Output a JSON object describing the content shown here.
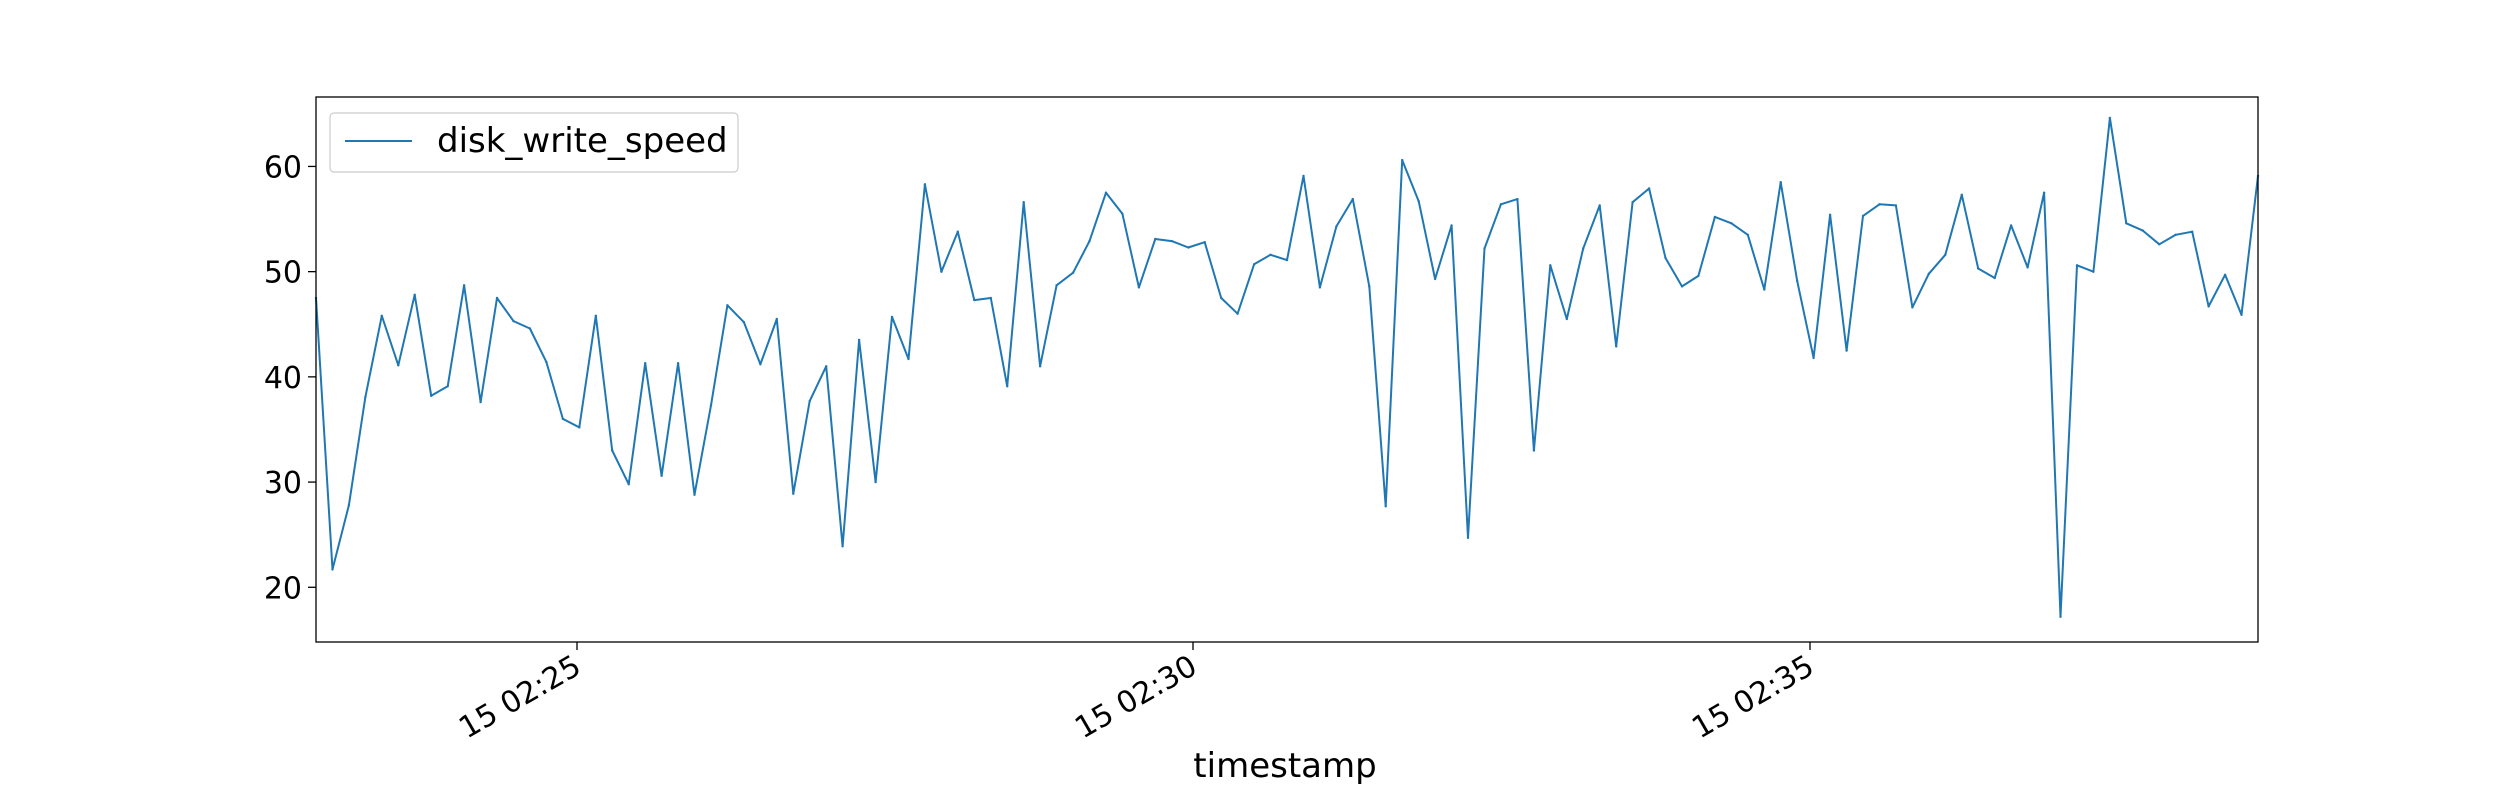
{
  "chart_data": {
    "type": "line",
    "title": "",
    "xlabel": "timestamp",
    "ylabel": "",
    "x_tick_labels": [
      "15 02:25",
      "15 02:30",
      "15 02:35"
    ],
    "y_ticks": [
      20,
      30,
      40,
      50,
      60
    ],
    "ylim": [
      14.8,
      66.6
    ],
    "legend_position": "top-left",
    "grid": false,
    "series": [
      {
        "name": "disk_write_speed",
        "color": "#1f77b4",
        "values": [
          47.5,
          21.7,
          27.8,
          38.1,
          45.8,
          41.1,
          47.8,
          38.2,
          39.1,
          48.7,
          37.6,
          47.5,
          45.3,
          44.6,
          41.4,
          36.0,
          35.2,
          45.8,
          33.0,
          29.8,
          41.3,
          30.6,
          41.3,
          28.8,
          37.3,
          46.8,
          45.2,
          41.2,
          45.5,
          28.9,
          37.7,
          41.0,
          23.9,
          43.5,
          30.0,
          45.7,
          41.7,
          58.3,
          50.0,
          53.8,
          47.3,
          47.5,
          39.1,
          56.6,
          41.0,
          48.7,
          49.9,
          52.9,
          57.5,
          55.5,
          48.5,
          53.1,
          52.9,
          52.3,
          52.8,
          47.5,
          46.0,
          50.7,
          51.6,
          51.1,
          59.1,
          48.5,
          54.3,
          56.9,
          48.6,
          27.7,
          60.6,
          56.7,
          49.3,
          54.4,
          24.7,
          52.2,
          56.4,
          56.9,
          33.0,
          50.6,
          45.5,
          52.2,
          56.3,
          42.9,
          56.6,
          57.9,
          51.3,
          48.6,
          49.6,
          55.2,
          54.6,
          53.5,
          48.3,
          58.5,
          49.1,
          41.8,
          55.4,
          42.5,
          55.3,
          56.4,
          56.3,
          46.6,
          49.8,
          51.6,
          57.3,
          50.3,
          49.4,
          54.4,
          50.4,
          57.5,
          17.2,
          50.6,
          50.0,
          64.6,
          54.6,
          53.9,
          52.6,
          53.5,
          53.8,
          46.7,
          49.7,
          45.9,
          59.1
        ]
      }
    ]
  }
}
